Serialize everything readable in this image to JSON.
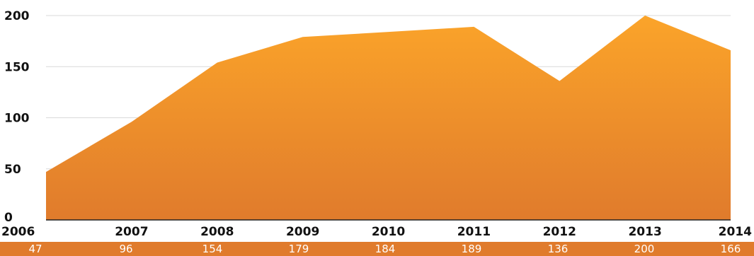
{
  "chart_data": {
    "type": "area",
    "categories": [
      "2006",
      "2007",
      "2008",
      "2009",
      "2010",
      "2011",
      "2012",
      "2013",
      "2014"
    ],
    "values": [
      47,
      96,
      154,
      179,
      184,
      189,
      136,
      200,
      166
    ],
    "title": "",
    "xlabel": "",
    "ylabel": "",
    "ylim": [
      0,
      200
    ],
    "yticks": [
      "0",
      "50",
      "100",
      "150",
      "200"
    ],
    "grid": true,
    "fill_gradient": [
      "#fba42a",
      "#e07b2c"
    ],
    "band_color": "#e07b2c",
    "label_color": "#ffffff"
  }
}
